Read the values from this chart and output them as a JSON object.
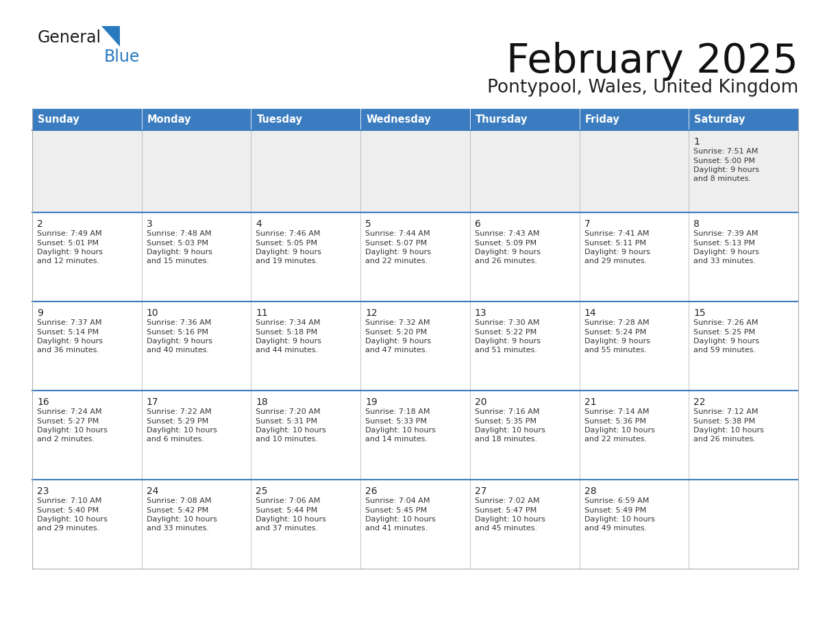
{
  "title": "February 2025",
  "subtitle": "Pontypool, Wales, United Kingdom",
  "header_color": "#3a7cbf",
  "header_text_color": "#ffffff",
  "days_of_week": [
    "Sunday",
    "Monday",
    "Tuesday",
    "Wednesday",
    "Thursday",
    "Friday",
    "Saturday"
  ],
  "weeks": [
    [
      {
        "day": null,
        "sunrise": null,
        "sunset": null,
        "daylight": null
      },
      {
        "day": null,
        "sunrise": null,
        "sunset": null,
        "daylight": null
      },
      {
        "day": null,
        "sunrise": null,
        "sunset": null,
        "daylight": null
      },
      {
        "day": null,
        "sunrise": null,
        "sunset": null,
        "daylight": null
      },
      {
        "day": null,
        "sunrise": null,
        "sunset": null,
        "daylight": null
      },
      {
        "day": null,
        "sunrise": null,
        "sunset": null,
        "daylight": null
      },
      {
        "day": 1,
        "sunrise": "7:51 AM",
        "sunset": "5:00 PM",
        "daylight": "9 hours\nand 8 minutes."
      }
    ],
    [
      {
        "day": 2,
        "sunrise": "7:49 AM",
        "sunset": "5:01 PM",
        "daylight": "9 hours\nand 12 minutes."
      },
      {
        "day": 3,
        "sunrise": "7:48 AM",
        "sunset": "5:03 PM",
        "daylight": "9 hours\nand 15 minutes."
      },
      {
        "day": 4,
        "sunrise": "7:46 AM",
        "sunset": "5:05 PM",
        "daylight": "9 hours\nand 19 minutes."
      },
      {
        "day": 5,
        "sunrise": "7:44 AM",
        "sunset": "5:07 PM",
        "daylight": "9 hours\nand 22 minutes."
      },
      {
        "day": 6,
        "sunrise": "7:43 AM",
        "sunset": "5:09 PM",
        "daylight": "9 hours\nand 26 minutes."
      },
      {
        "day": 7,
        "sunrise": "7:41 AM",
        "sunset": "5:11 PM",
        "daylight": "9 hours\nand 29 minutes."
      },
      {
        "day": 8,
        "sunrise": "7:39 AM",
        "sunset": "5:13 PM",
        "daylight": "9 hours\nand 33 minutes."
      }
    ],
    [
      {
        "day": 9,
        "sunrise": "7:37 AM",
        "sunset": "5:14 PM",
        "daylight": "9 hours\nand 36 minutes."
      },
      {
        "day": 10,
        "sunrise": "7:36 AM",
        "sunset": "5:16 PM",
        "daylight": "9 hours\nand 40 minutes."
      },
      {
        "day": 11,
        "sunrise": "7:34 AM",
        "sunset": "5:18 PM",
        "daylight": "9 hours\nand 44 minutes."
      },
      {
        "day": 12,
        "sunrise": "7:32 AM",
        "sunset": "5:20 PM",
        "daylight": "9 hours\nand 47 minutes."
      },
      {
        "day": 13,
        "sunrise": "7:30 AM",
        "sunset": "5:22 PM",
        "daylight": "9 hours\nand 51 minutes."
      },
      {
        "day": 14,
        "sunrise": "7:28 AM",
        "sunset": "5:24 PM",
        "daylight": "9 hours\nand 55 minutes."
      },
      {
        "day": 15,
        "sunrise": "7:26 AM",
        "sunset": "5:25 PM",
        "daylight": "9 hours\nand 59 minutes."
      }
    ],
    [
      {
        "day": 16,
        "sunrise": "7:24 AM",
        "sunset": "5:27 PM",
        "daylight": "10 hours\nand 2 minutes."
      },
      {
        "day": 17,
        "sunrise": "7:22 AM",
        "sunset": "5:29 PM",
        "daylight": "10 hours\nand 6 minutes."
      },
      {
        "day": 18,
        "sunrise": "7:20 AM",
        "sunset": "5:31 PM",
        "daylight": "10 hours\nand 10 minutes."
      },
      {
        "day": 19,
        "sunrise": "7:18 AM",
        "sunset": "5:33 PM",
        "daylight": "10 hours\nand 14 minutes."
      },
      {
        "day": 20,
        "sunrise": "7:16 AM",
        "sunset": "5:35 PM",
        "daylight": "10 hours\nand 18 minutes."
      },
      {
        "day": 21,
        "sunrise": "7:14 AM",
        "sunset": "5:36 PM",
        "daylight": "10 hours\nand 22 minutes."
      },
      {
        "day": 22,
        "sunrise": "7:12 AM",
        "sunset": "5:38 PM",
        "daylight": "10 hours\nand 26 minutes."
      }
    ],
    [
      {
        "day": 23,
        "sunrise": "7:10 AM",
        "sunset": "5:40 PM",
        "daylight": "10 hours\nand 29 minutes."
      },
      {
        "day": 24,
        "sunrise": "7:08 AM",
        "sunset": "5:42 PM",
        "daylight": "10 hours\nand 33 minutes."
      },
      {
        "day": 25,
        "sunrise": "7:06 AM",
        "sunset": "5:44 PM",
        "daylight": "10 hours\nand 37 minutes."
      },
      {
        "day": 26,
        "sunrise": "7:04 AM",
        "sunset": "5:45 PM",
        "daylight": "10 hours\nand 41 minutes."
      },
      {
        "day": 27,
        "sunrise": "7:02 AM",
        "sunset": "5:47 PM",
        "daylight": "10 hours\nand 45 minutes."
      },
      {
        "day": 28,
        "sunrise": "6:59 AM",
        "sunset": "5:49 PM",
        "daylight": "10 hours\nand 49 minutes."
      },
      {
        "day": null,
        "sunrise": null,
        "sunset": null,
        "daylight": null
      }
    ]
  ],
  "border_color": "#aaaaaa",
  "divider_color": "#3a7cbf",
  "day_number_color": "#222222",
  "text_color": "#333333",
  "logo_general_color": "#1a1a1a",
  "logo_blue_color": "#2979c0",
  "cell_bg": "#ffffff",
  "week1_bg": "#eeeeee"
}
